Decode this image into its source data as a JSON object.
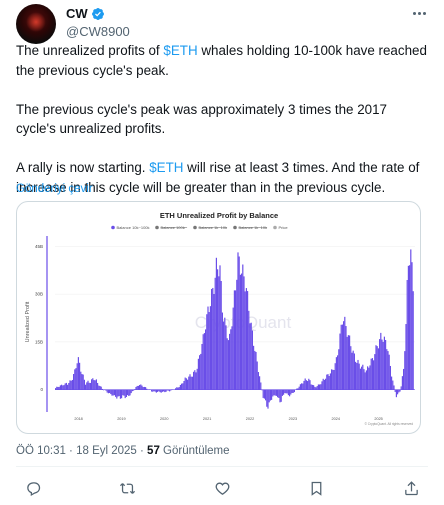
{
  "author": {
    "display_name": "CW",
    "handle": "@CW8900",
    "verified": true,
    "avatar_icon": "avatar-dark-red-glow"
  },
  "tweet": {
    "line1_pre": "The unrealized profits of ",
    "line1_cashtag": "$ETH",
    "line1_post": " whales holding 10-100k have reached the previous cycle's peak.",
    "line2": "The previous cycle's peak was approximately 3 times the 2017 cycle's unrealized profits.",
    "line3_pre": "A rally is now starting. ",
    "line3_cashtag": "$ETH",
    "line3_post": " will rise at least 3 times. And the rate of increase in this cycle will be greater than in the previous cycle.",
    "translate_label": "Gönderiyi çevir"
  },
  "meta": {
    "time": "ÖÖ 10:31 · 18 Eyl 2025 · ",
    "views_count": "57",
    "views_label": " Görüntüleme"
  },
  "actions": {
    "icons": [
      "reply-icon",
      "retweet-icon",
      "like-icon",
      "bookmark-icon",
      "share-icon"
    ]
  },
  "colors": {
    "accent": "#1d9bf0",
    "series": "#6a4ee8",
    "text": "#0f1419",
    "muted": "#536471"
  },
  "chart_data": {
    "type": "area",
    "title": "ETH Unrealized Profit by Balance",
    "ylabel": "Unrealized Profit",
    "xlabel": "",
    "watermark": "CryptoQuant",
    "copyright": "© CryptoQuant. All rights reserved",
    "legend": [
      "Balance 10k~100k",
      "Balance 100k~",
      "Balance 1k~10k",
      "Balance 1k~10k",
      "Price"
    ],
    "legend_placement": "top",
    "y_ticks": [
      "45B",
      "30B",
      "15B",
      "0"
    ],
    "ylim": [
      -7,
      47
    ],
    "x_ticks": [
      "2018",
      "2019",
      "2020",
      "2021",
      "2022",
      "2023",
      "2024",
      "2025"
    ],
    "xlim": [
      2017.5,
      2025.9
    ],
    "grid": true,
    "series": [
      {
        "name": "Balance 10k~100k",
        "x": [
          2017.5,
          2017.7,
          2017.85,
          2017.95,
          2018.02,
          2018.1,
          2018.2,
          2018.3,
          2018.4,
          2018.5,
          2018.6,
          2018.75,
          2018.9,
          2019.0,
          2019.2,
          2019.35,
          2019.45,
          2019.6,
          2019.8,
          2020.0,
          2020.2,
          2020.4,
          2020.6,
          2020.8,
          2020.95,
          2021.1,
          2021.25,
          2021.33,
          2021.4,
          2021.48,
          2021.55,
          2021.65,
          2021.75,
          2021.85,
          2021.95,
          2022.05,
          2022.15,
          2022.25,
          2022.35,
          2022.45,
          2022.55,
          2022.65,
          2022.75,
          2022.85,
          2022.95,
          2023.1,
          2023.25,
          2023.4,
          2023.55,
          2023.7,
          2023.85,
          2023.95,
          2024.05,
          2024.15,
          2024.2,
          2024.3,
          2024.45,
          2024.6,
          2024.75,
          2024.9,
          2025.0,
          2025.1,
          2025.25,
          2025.35,
          2025.45,
          2025.55,
          2025.62,
          2025.68,
          2025.72,
          2025.78,
          2025.85
        ],
        "values": [
          0.5,
          1.5,
          3,
          6,
          9.5,
          5,
          2,
          3,
          4,
          1.5,
          0,
          -1,
          -2,
          -3,
          -2,
          0.5,
          1.5,
          0.5,
          -0.5,
          -1,
          0,
          1,
          4,
          7,
          15,
          28,
          40,
          38,
          22,
          18,
          15,
          28,
          42,
          35,
          30,
          22,
          14,
          5,
          -3,
          -6,
          -2,
          -1.5,
          -4,
          -1,
          -2,
          0,
          2,
          3,
          1,
          2,
          4,
          6,
          10,
          18,
          22,
          17,
          12,
          8,
          5,
          10,
          15,
          17,
          12,
          4,
          -2,
          0,
          6,
          20,
          36,
          42,
          33
        ]
      }
    ]
  }
}
